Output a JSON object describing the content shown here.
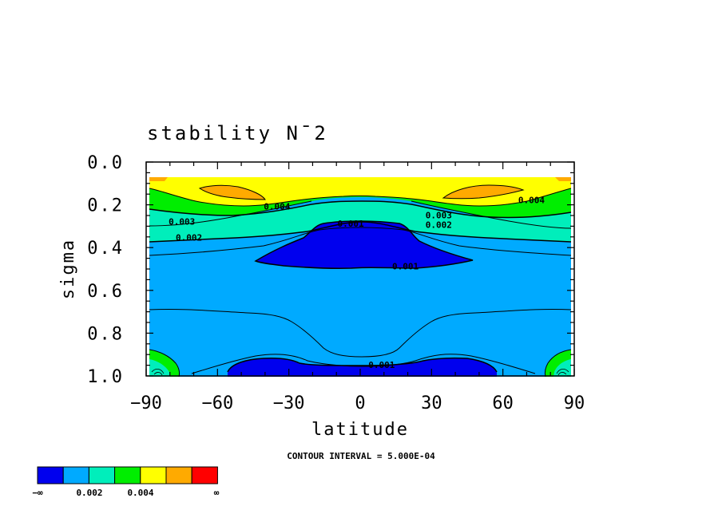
{
  "chart_data": {
    "type": "contour",
    "title": "stability N¯2",
    "xlabel": "latitude",
    "ylabel": "sigma",
    "xlim": [
      -90,
      90
    ],
    "ylim": [
      1.0,
      0.0
    ],
    "x_ticks": [
      "−90",
      "−60",
      "−30",
      "0",
      "30",
      "60",
      "90"
    ],
    "y_ticks": [
      "0.0",
      "0.2",
      "0.4",
      "0.6",
      "0.8",
      "1.0"
    ],
    "contour_interval_text": "CONTOUR INTERVAL = 5.000E-04",
    "contour_labels": [
      {
        "text": "0.004",
        "lat": -35,
        "sigma": 0.215
      },
      {
        "text": "0.004",
        "lat": 72,
        "sigma": 0.185
      },
      {
        "text": "0.003",
        "lat": -75,
        "sigma": 0.285
      },
      {
        "text": "0.003",
        "lat": 33,
        "sigma": 0.255
      },
      {
        "text": "0.002",
        "lat": -72,
        "sigma": 0.36
      },
      {
        "text": "0.002",
        "lat": 33,
        "sigma": 0.3
      },
      {
        "text": "0.001",
        "lat": -4,
        "sigma": 0.295
      },
      {
        "text": "0.001",
        "lat": 19,
        "sigma": 0.495
      },
      {
        "text": "0.001",
        "lat": 9,
        "sigma": 0.955
      }
    ],
    "fill_levels": [
      0.001,
      0.002,
      0.003,
      0.004,
      0.005,
      0.006
    ],
    "colors": [
      "#0000ee",
      "#00aaff",
      "#00eebb",
      "#00ee00",
      "#ffff00",
      "#ffaa00",
      "#ff0000"
    ],
    "colorbar": {
      "labels": [
        "−∞",
        "0.002",
        "0.004",
        "∞"
      ]
    }
  }
}
